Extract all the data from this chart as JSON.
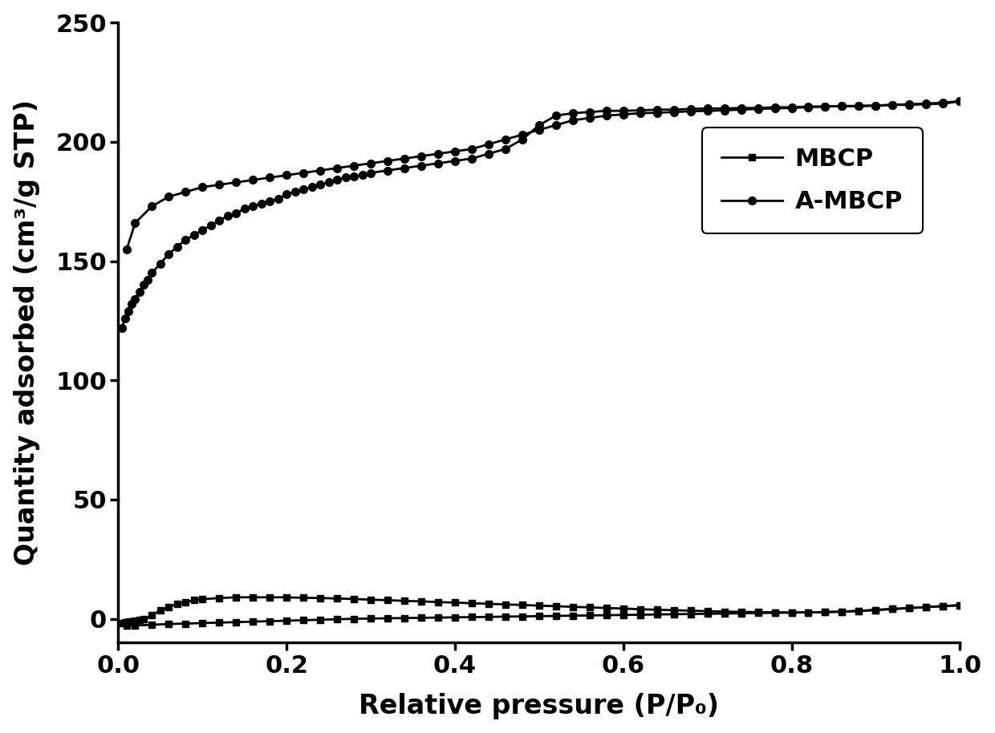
{
  "xlabel": "Relative pressure (P/P₀)",
  "ylabel": "Quantity adsorbed (cm³/g STP)",
  "xlim": [
    0.0,
    1.0
  ],
  "ylim": [
    -10,
    250
  ],
  "yticks": [
    0,
    50,
    100,
    150,
    200,
    250
  ],
  "xticks": [
    0.0,
    0.2,
    0.4,
    0.6,
    0.8,
    1.0
  ],
  "legend_labels": [
    "MBCP",
    "A-MBCP"
  ],
  "line_color": "#000000",
  "linewidth": 2.0,
  "marker_size_square": 6,
  "marker_size_circle": 7,
  "AMBCP_ads_x": [
    0.004,
    0.008,
    0.012,
    0.016,
    0.02,
    0.025,
    0.03,
    0.035,
    0.04,
    0.05,
    0.06,
    0.07,
    0.08,
    0.09,
    0.1,
    0.11,
    0.12,
    0.13,
    0.14,
    0.15,
    0.16,
    0.17,
    0.18,
    0.19,
    0.2,
    0.21,
    0.22,
    0.23,
    0.24,
    0.25,
    0.26,
    0.27,
    0.28,
    0.29,
    0.3,
    0.32,
    0.34,
    0.36,
    0.38,
    0.4,
    0.42,
    0.44,
    0.46,
    0.48,
    0.5,
    0.52,
    0.54,
    0.56,
    0.58,
    0.6,
    0.62,
    0.64,
    0.66,
    0.68,
    0.7,
    0.72,
    0.74,
    0.76,
    0.78,
    0.8,
    0.82,
    0.84,
    0.86,
    0.88,
    0.9,
    0.92,
    0.94,
    0.96,
    0.98,
    1.0
  ],
  "AMBCP_ads_y": [
    122,
    126,
    129,
    132,
    134,
    137,
    140,
    142,
    145,
    149,
    153,
    156,
    159,
    161,
    163,
    165,
    167,
    169,
    170,
    172,
    173,
    174,
    175,
    176,
    178,
    179,
    180,
    181,
    182,
    183,
    184,
    185,
    185.5,
    186,
    187,
    188,
    189,
    190,
    191,
    192,
    193,
    195,
    197,
    201,
    207,
    211,
    212,
    212.5,
    213,
    213,
    213.2,
    213.5,
    213.5,
    213.8,
    214,
    214,
    214.2,
    214.2,
    214.5,
    214.5,
    214.8,
    214.8,
    215,
    215,
    215.2,
    215.5,
    215.5,
    215.8,
    216,
    217
  ],
  "AMBCP_des_x": [
    1.0,
    0.98,
    0.96,
    0.94,
    0.92,
    0.9,
    0.88,
    0.86,
    0.84,
    0.82,
    0.8,
    0.78,
    0.76,
    0.74,
    0.72,
    0.7,
    0.68,
    0.66,
    0.64,
    0.62,
    0.6,
    0.58,
    0.56,
    0.54,
    0.52,
    0.5,
    0.48,
    0.46,
    0.44,
    0.42,
    0.4,
    0.38,
    0.36,
    0.34,
    0.32,
    0.3,
    0.28,
    0.26,
    0.24,
    0.22,
    0.2,
    0.18,
    0.16,
    0.14,
    0.12,
    0.1,
    0.08,
    0.06,
    0.04,
    0.02,
    0.01
  ],
  "AMBCP_des_y": [
    217,
    216.5,
    216,
    215.8,
    215.5,
    215.2,
    215,
    215,
    214.8,
    214.5,
    214.2,
    214,
    213.8,
    213.5,
    213.2,
    213,
    212.8,
    212.5,
    212.2,
    212,
    211.5,
    211,
    210,
    209,
    207,
    205,
    203,
    201,
    199,
    197,
    196,
    195,
    194,
    193,
    192,
    191,
    190,
    189,
    188,
    187,
    186,
    185,
    184,
    183,
    182,
    181,
    179,
    177,
    173,
    166,
    155
  ],
  "MBCP_ads_x": [
    0.004,
    0.008,
    0.012,
    0.016,
    0.02,
    0.025,
    0.03,
    0.04,
    0.05,
    0.06,
    0.07,
    0.08,
    0.09,
    0.1,
    0.12,
    0.14,
    0.16,
    0.18,
    0.2,
    0.22,
    0.24,
    0.26,
    0.28,
    0.3,
    0.32,
    0.34,
    0.36,
    0.38,
    0.4,
    0.42,
    0.44,
    0.46,
    0.48,
    0.5,
    0.52,
    0.54,
    0.56,
    0.58,
    0.6,
    0.62,
    0.64,
    0.66,
    0.68,
    0.7,
    0.72,
    0.74,
    0.76,
    0.78,
    0.8,
    0.82,
    0.84,
    0.86,
    0.88,
    0.9,
    0.92,
    0.94,
    0.96,
    0.98,
    1.0
  ],
  "MBCP_ads_y": [
    -1.8,
    -1.5,
    -1.2,
    -1.0,
    -0.8,
    -0.5,
    -0.2,
    1.5,
    3.5,
    5.0,
    6.2,
    7.0,
    7.8,
    8.2,
    8.7,
    9.0,
    9.0,
    9.0,
    9.0,
    8.8,
    8.7,
    8.5,
    8.3,
    8.0,
    7.8,
    7.5,
    7.3,
    7.0,
    6.8,
    6.5,
    6.3,
    6.0,
    5.8,
    5.5,
    5.3,
    5.0,
    4.8,
    4.5,
    4.3,
    4.0,
    3.8,
    3.6,
    3.4,
    3.2,
    3.0,
    2.9,
    2.8,
    2.7,
    2.6,
    2.7,
    2.8,
    3.0,
    3.3,
    3.7,
    4.1,
    4.5,
    4.9,
    5.3,
    5.7
  ],
  "MBCP_des_x": [
    1.0,
    0.98,
    0.96,
    0.94,
    0.92,
    0.9,
    0.88,
    0.86,
    0.84,
    0.82,
    0.8,
    0.78,
    0.76,
    0.74,
    0.72,
    0.7,
    0.68,
    0.66,
    0.64,
    0.62,
    0.6,
    0.58,
    0.56,
    0.54,
    0.52,
    0.5,
    0.48,
    0.46,
    0.44,
    0.42,
    0.4,
    0.38,
    0.36,
    0.34,
    0.32,
    0.3,
    0.28,
    0.26,
    0.24,
    0.22,
    0.2,
    0.18,
    0.16,
    0.14,
    0.12,
    0.1,
    0.08,
    0.06,
    0.04,
    0.02,
    0.01
  ],
  "MBCP_des_y": [
    5.7,
    5.3,
    4.9,
    4.5,
    4.1,
    3.7,
    3.3,
    3.0,
    2.8,
    2.7,
    2.6,
    2.5,
    2.4,
    2.3,
    2.2,
    2.1,
    2.0,
    1.9,
    1.8,
    1.7,
    1.6,
    1.5,
    1.4,
    1.3,
    1.2,
    1.1,
    1.0,
    0.9,
    0.8,
    0.7,
    0.6,
    0.5,
    0.4,
    0.3,
    0.2,
    0.1,
    0.0,
    -0.2,
    -0.4,
    -0.6,
    -0.8,
    -1.0,
    -1.2,
    -1.4,
    -1.6,
    -1.8,
    -2.0,
    -2.2,
    -2.5,
    -2.8,
    -3.0
  ]
}
